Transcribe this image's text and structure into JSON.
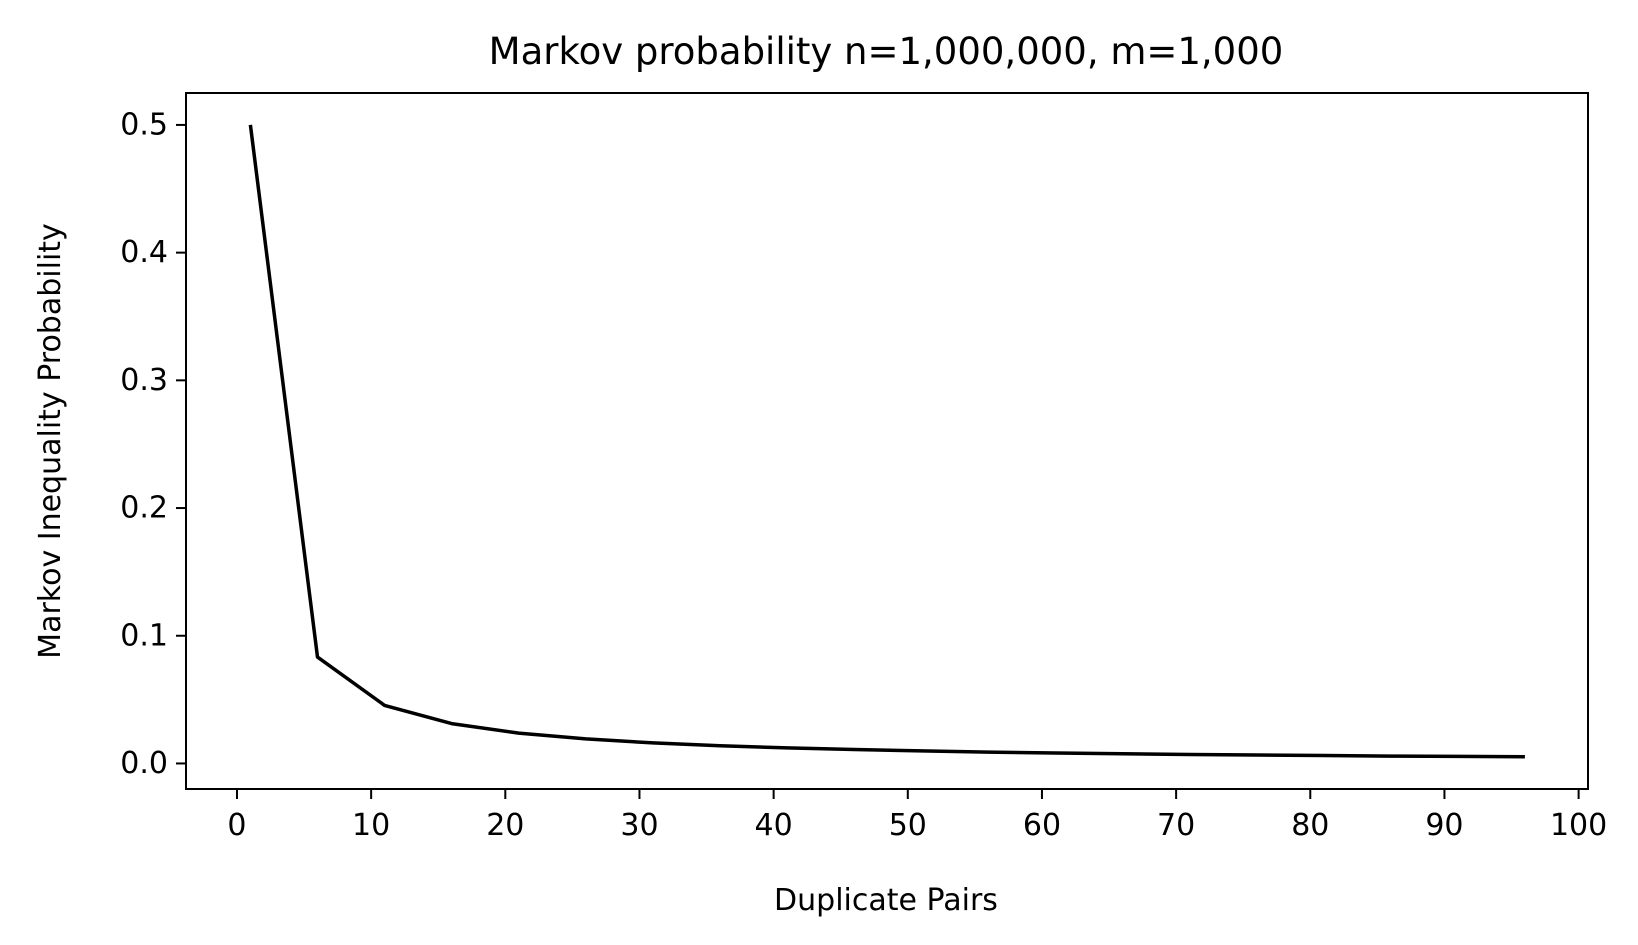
{
  "chart_data": {
    "type": "line",
    "title": "Markov probability n=1,000,000, m=1,000",
    "xlabel": "Duplicate Pairs",
    "ylabel": "Markov Inequality Probability",
    "xlim": [
      -3.8,
      100.7
    ],
    "ylim": [
      -0.02,
      0.525
    ],
    "x_ticks": [
      0,
      10,
      20,
      30,
      40,
      50,
      60,
      70,
      80,
      90,
      100
    ],
    "x_tick_labels": [
      "0",
      "10",
      "20",
      "30",
      "40",
      "50",
      "60",
      "70",
      "80",
      "90",
      "100"
    ],
    "y_ticks": [
      0.0,
      0.1,
      0.2,
      0.3,
      0.4,
      0.5
    ],
    "y_tick_labels": [
      "0.0",
      "0.1",
      "0.2",
      "0.3",
      "0.4",
      "0.5"
    ],
    "grid": false,
    "line_color": "#000000",
    "series": [
      {
        "x": [
          1,
          6,
          11,
          16,
          21,
          26,
          31,
          36,
          41,
          46,
          51,
          56,
          61,
          66,
          71,
          76,
          81,
          86,
          91,
          96
        ],
        "y": [
          0.5,
          0.0833,
          0.0455,
          0.03125,
          0.0238,
          0.0192,
          0.0161,
          0.0139,
          0.0122,
          0.0109,
          0.0098,
          0.0089,
          0.0082,
          0.0076,
          0.007,
          0.0066,
          0.0062,
          0.0058,
          0.0055,
          0.0052
        ]
      }
    ]
  }
}
